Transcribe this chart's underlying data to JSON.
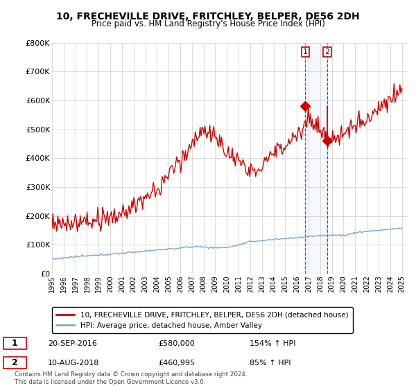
{
  "title": "10, FRECHEVILLE DRIVE, FRITCHLEY, BELPER, DE56 2DH",
  "subtitle": "Price paid vs. HM Land Registry's House Price Index (HPI)",
  "ylim": [
    0,
    800000
  ],
  "yticks": [
    0,
    100000,
    200000,
    300000,
    400000,
    500000,
    600000,
    700000,
    800000
  ],
  "ytick_labels": [
    "£0",
    "£100K",
    "£200K",
    "£300K",
    "£400K",
    "£500K",
    "£600K",
    "£700K",
    "£800K"
  ],
  "legend_line1": "10, FRECHEVILLE DRIVE, FRITCHLEY, BELPER, DE56 2DH (detached house)",
  "legend_line2": "HPI: Average price, detached house, Amber Valley",
  "sale1_date": "20-SEP-2016",
  "sale1_price": "£580,000",
  "sale1_hpi": "154% ↑ HPI",
  "sale2_date": "10-AUG-2018",
  "sale2_price": "£460,995",
  "sale2_hpi": "85% ↑ HPI",
  "footer": "Contains HM Land Registry data © Crown copyright and database right 2024.\nThis data is licensed under the Open Government Licence v3.0.",
  "hpi_color": "#7ba7d4",
  "price_color": "#cc0000",
  "highlight_color": "#ddeeff",
  "sale1_year": 2016.72,
  "sale2_year": 2018.6,
  "sale1_price_val": 580000,
  "sale2_price_val": 460995
}
